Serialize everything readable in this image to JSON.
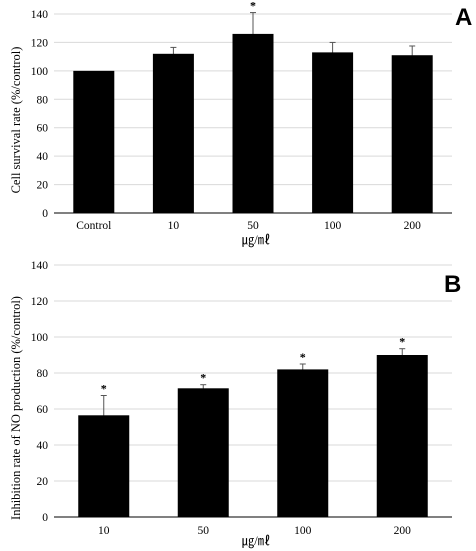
{
  "chart_data": [
    {
      "panel": "A",
      "type": "bar",
      "xlabel": "㎍/㎖",
      "ylabel": "Cell survival rate (%/control)",
      "categories": [
        "Control",
        "10",
        "50",
        "100",
        "200"
      ],
      "values": [
        100,
        112,
        126,
        113,
        111
      ],
      "errors": [
        0,
        4.5,
        15,
        7,
        6.5
      ],
      "significance": [
        "",
        "",
        "*",
        "",
        ""
      ],
      "ylim": [
        0,
        140
      ],
      "yticks": [
        "0",
        "20",
        "40",
        "60",
        "80",
        "100",
        "120",
        "140"
      ],
      "grid": true,
      "bar_color": "#000000"
    },
    {
      "panel": "B",
      "type": "bar",
      "xlabel": "㎍/㎖",
      "ylabel": "Inhibition rate of NO production (%/control)",
      "categories": [
        "10",
        "50",
        "100",
        "200"
      ],
      "values": [
        56.5,
        71.5,
        82,
        90
      ],
      "errors": [
        11,
        2,
        3,
        3.5
      ],
      "significance": [
        "*",
        "*",
        "*",
        "*"
      ],
      "ylim": [
        0,
        140
      ],
      "yticks": [
        "0",
        "20",
        "40",
        "60",
        "80",
        "100",
        "120",
        "140"
      ],
      "grid": true,
      "bar_color": "#000000"
    }
  ]
}
